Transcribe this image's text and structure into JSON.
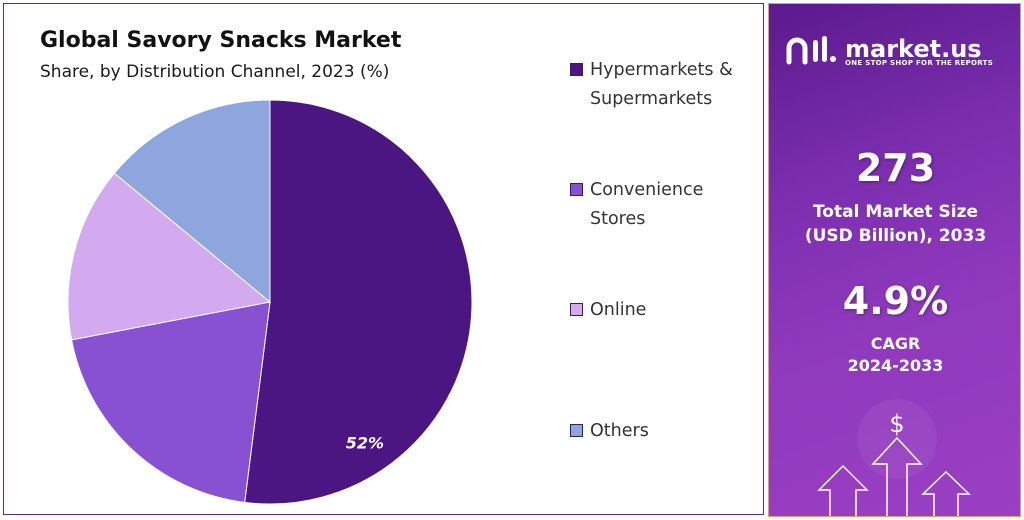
{
  "chart_data": {
    "type": "pie",
    "title": "Global Savory Snacks Market",
    "subtitle": "Share, by Distribution Channel, 2023 (%)",
    "slices": [
      {
        "label": "Hypermarkets & Supermarkets",
        "value": 52,
        "color": "#4b1582",
        "data_label": "52%"
      },
      {
        "label": "Convenience Stores",
        "value": 20,
        "color": "#8751d1",
        "data_label": ""
      },
      {
        "label": "Online",
        "value": 14,
        "color": "#d3a9f0",
        "data_label": ""
      },
      {
        "label": "Others",
        "value": 14,
        "color": "#8ea6de",
        "data_label": ""
      }
    ],
    "legend_position": "right"
  },
  "brand": {
    "name": "market.us",
    "tagline": "ONE STOP SHOP FOR THE REPORTS",
    "logo_icon": "market-us-logo-icon"
  },
  "stats": {
    "market_size_value": "273",
    "market_size_label_1": "Total Market Size",
    "market_size_label_2": "(USD Billion), 2033",
    "cagr_value": "4.9%",
    "cagr_label_1": "CAGR",
    "cagr_label_2": "2024-2033"
  },
  "decoration": {
    "currency_symbol": "$",
    "icon": "growth-arrows-icon"
  },
  "colors": {
    "panel_gradient_start": "#5b1a8e",
    "panel_gradient_end": "#9a3fc4",
    "panel_border": "#d9a65c"
  }
}
